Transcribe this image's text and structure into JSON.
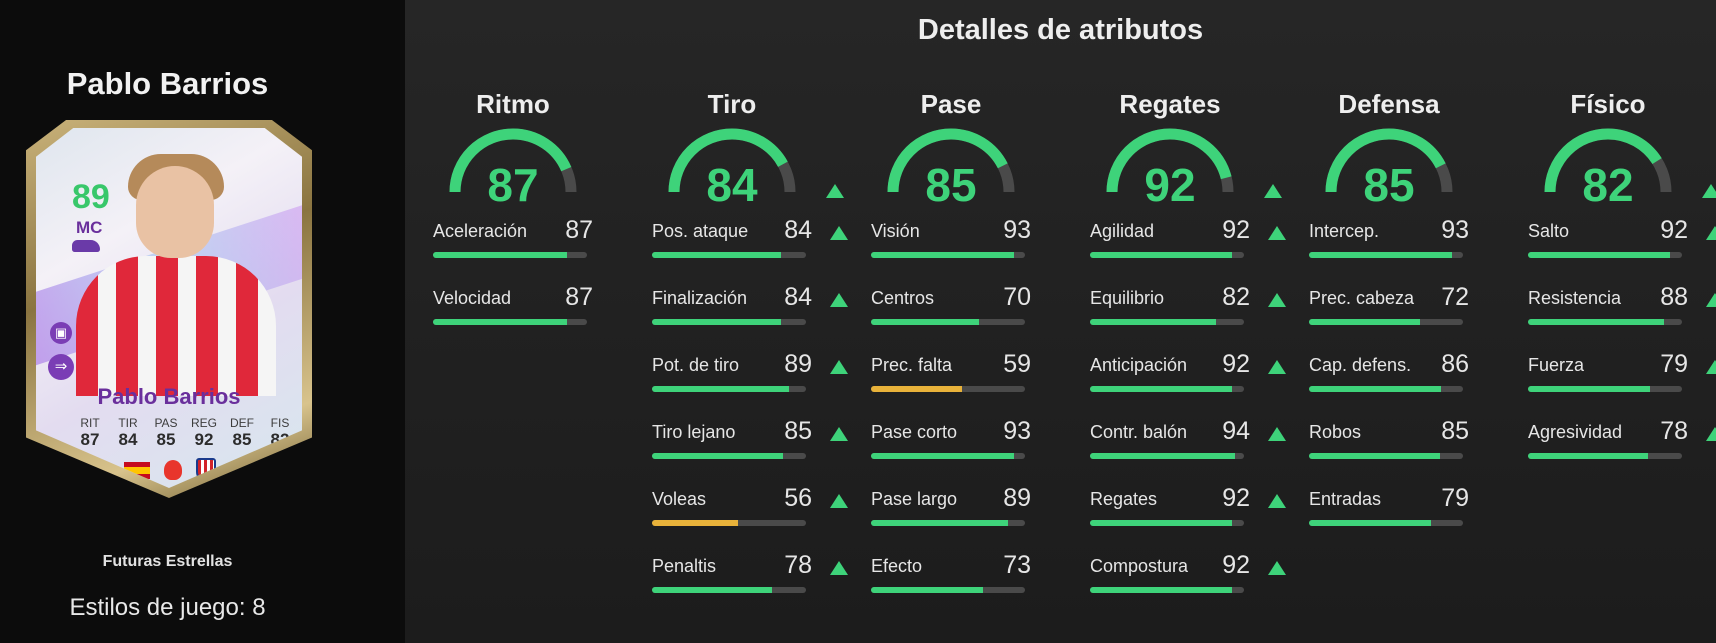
{
  "player": {
    "name": "Pablo Barrios",
    "subtitle": "Futuras Estrellas",
    "playstyles": "Estilos de juego: 8"
  },
  "card": {
    "rating": "89",
    "position": "MC",
    "name": "Pablo Barrios",
    "stats": [
      {
        "label": "RIT",
        "value": "87"
      },
      {
        "label": "TIR",
        "value": "84"
      },
      {
        "label": "PAS",
        "value": "85"
      },
      {
        "label": "REG",
        "value": "92"
      },
      {
        "label": "DEF",
        "value": "85"
      },
      {
        "label": "FIS",
        "value": "82"
      }
    ]
  },
  "details": {
    "title": "Detalles de atributos",
    "categories": [
      {
        "name": "Ritmo",
        "value": 87,
        "upgraded": false,
        "stats": [
          {
            "label": "Aceleración",
            "value": 87,
            "upgraded": false
          },
          {
            "label": "Velocidad",
            "value": 87,
            "upgraded": false
          }
        ]
      },
      {
        "name": "Tiro",
        "value": 84,
        "upgraded": true,
        "stats": [
          {
            "label": "Pos. ataque",
            "value": 84,
            "upgraded": true
          },
          {
            "label": "Finalización",
            "value": 84,
            "upgraded": true
          },
          {
            "label": "Pot. de tiro",
            "value": 89,
            "upgraded": true
          },
          {
            "label": "Tiro lejano",
            "value": 85,
            "upgraded": true
          },
          {
            "label": "Voleas",
            "value": 56,
            "upgraded": true
          },
          {
            "label": "Penaltis",
            "value": 78,
            "upgraded": true
          }
        ]
      },
      {
        "name": "Pase",
        "value": 85,
        "upgraded": false,
        "stats": [
          {
            "label": "Visión",
            "value": 93,
            "upgraded": false
          },
          {
            "label": "Centros",
            "value": 70,
            "upgraded": false
          },
          {
            "label": "Prec. falta",
            "value": 59,
            "upgraded": false
          },
          {
            "label": "Pase corto",
            "value": 93,
            "upgraded": false
          },
          {
            "label": "Pase largo",
            "value": 89,
            "upgraded": false
          },
          {
            "label": "Efecto",
            "value": 73,
            "upgraded": false
          }
        ]
      },
      {
        "name": "Regates",
        "value": 92,
        "upgraded": true,
        "stats": [
          {
            "label": "Agilidad",
            "value": 92,
            "upgraded": true
          },
          {
            "label": "Equilibrio",
            "value": 82,
            "upgraded": true
          },
          {
            "label": "Anticipación",
            "value": 92,
            "upgraded": true
          },
          {
            "label": "Contr. balón",
            "value": 94,
            "upgraded": true
          },
          {
            "label": "Regates",
            "value": 92,
            "upgraded": true
          },
          {
            "label": "Compostura",
            "value": 92,
            "upgraded": true
          }
        ]
      },
      {
        "name": "Defensa",
        "value": 85,
        "upgraded": false,
        "stats": [
          {
            "label": "Intercep.",
            "value": 93,
            "upgraded": false
          },
          {
            "label": "Prec. cabeza",
            "value": 72,
            "upgraded": false
          },
          {
            "label": "Cap. defens.",
            "value": 86,
            "upgraded": false
          },
          {
            "label": "Robos",
            "value": 85,
            "upgraded": false
          },
          {
            "label": "Entradas",
            "value": 79,
            "upgraded": false
          }
        ]
      },
      {
        "name": "Físico",
        "value": 82,
        "upgraded": true,
        "stats": [
          {
            "label": "Salto",
            "value": 92,
            "upgraded": true
          },
          {
            "label": "Resistencia",
            "value": 88,
            "upgraded": true
          },
          {
            "label": "Fuerza",
            "value": 79,
            "upgraded": true
          },
          {
            "label": "Agresividad",
            "value": 78,
            "upgraded": true
          }
        ]
      }
    ]
  },
  "colors": {
    "good": "#3ed37a",
    "mid": "#e8b23a",
    "track": "#4a4a4a"
  }
}
